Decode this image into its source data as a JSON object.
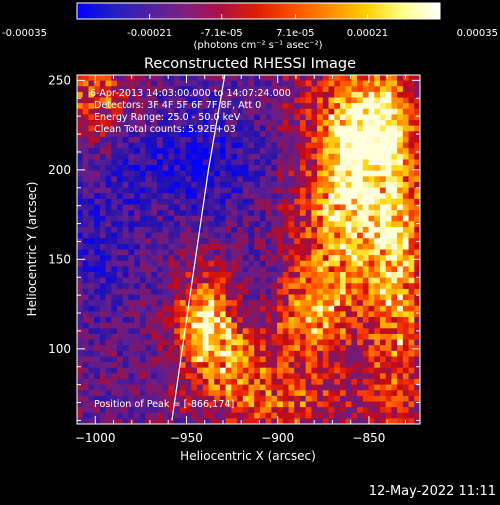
{
  "chart_data": {
    "type": "heatmap",
    "title": "Reconstructed RHESSI Image",
    "xlabel": "Heliocentric X (arcsec)",
    "ylabel": "Heliocentric Y (arcsec)",
    "xlim": [
      -1010,
      -822
    ],
    "ylim": [
      58,
      253
    ],
    "xticks": [
      -1000,
      -950,
      -900,
      -850
    ],
    "xtick_labels": [
      "−1000",
      "−950",
      "−900",
      "−850"
    ],
    "yticks": [
      100,
      150,
      200,
      250
    ],
    "ytick_labels": [
      "100",
      "150",
      "200",
      "250"
    ],
    "colorbar": {
      "range": [
        -0.00035,
        0.00035
      ],
      "ticks": [
        -0.00035,
        -0.00021,
        -7.1e-05,
        7.1e-05,
        0.00021,
        0.00035
      ],
      "tick_labels": [
        "-0.00035",
        "-0.00021",
        "-7.1e-05",
        "7.1e-05",
        "0.00021",
        "0.00035"
      ],
      "unit_label": "(photons cm⁻² s⁻¹ asec⁻²)",
      "colors": [
        "#0000ff",
        "#2020c0",
        "#5020a0",
        "#802080",
        "#b01040",
        "#e02000",
        "#ff5000",
        "#ff9000",
        "#ffd000",
        "#ffff90",
        "#ffffff"
      ]
    },
    "annotations": [
      "6-Apr-2013 14:03:00.000 to 14:07:24.000",
      "Detectors: 3F 4F 5F 6F 7F 8F, Att 0",
      "Energy Range: 25.0 - 50.0 keV",
      "Clean    Total counts: 5.92E+03"
    ],
    "peak_label": "Position of Peak = [-866,174]",
    "limb_line": [
      [
        -958,
        60
      ],
      [
        -948,
        130
      ],
      [
        -938,
        200
      ],
      [
        -929,
        253
      ]
    ],
    "bright_sources": [
      {
        "x": -862,
        "y": 190,
        "sx": 14,
        "sy": 40,
        "amp": 1.0
      },
      {
        "x": -845,
        "y": 225,
        "sx": 12,
        "sy": 18,
        "amp": 0.8
      },
      {
        "x": -835,
        "y": 150,
        "sx": 10,
        "sy": 55,
        "amp": 0.75
      },
      {
        "x": -940,
        "y": 120,
        "sx": 10,
        "sy": 18,
        "amp": 0.9
      },
      {
        "x": -925,
        "y": 95,
        "sx": 18,
        "sy": 15,
        "amp": 0.7
      },
      {
        "x": -880,
        "y": 120,
        "sx": 12,
        "sy": 20,
        "amp": 0.6
      },
      {
        "x": -1000,
        "y": 240,
        "sx": 12,
        "sy": 15,
        "amp": 0.55
      },
      {
        "x": -905,
        "y": 70,
        "sx": 25,
        "sy": 10,
        "amp": 0.5
      }
    ],
    "dark_sources": [
      {
        "x": -940,
        "y": 205,
        "sx": 20,
        "sy": 22,
        "amp": 0.7
      },
      {
        "x": -1000,
        "y": 160,
        "sx": 15,
        "sy": 30,
        "amp": 0.5
      },
      {
        "x": -975,
        "y": 200,
        "sx": 12,
        "sy": 15,
        "amp": 0.4
      }
    ]
  },
  "footer": {
    "date": "12-May-2022 11:11"
  }
}
